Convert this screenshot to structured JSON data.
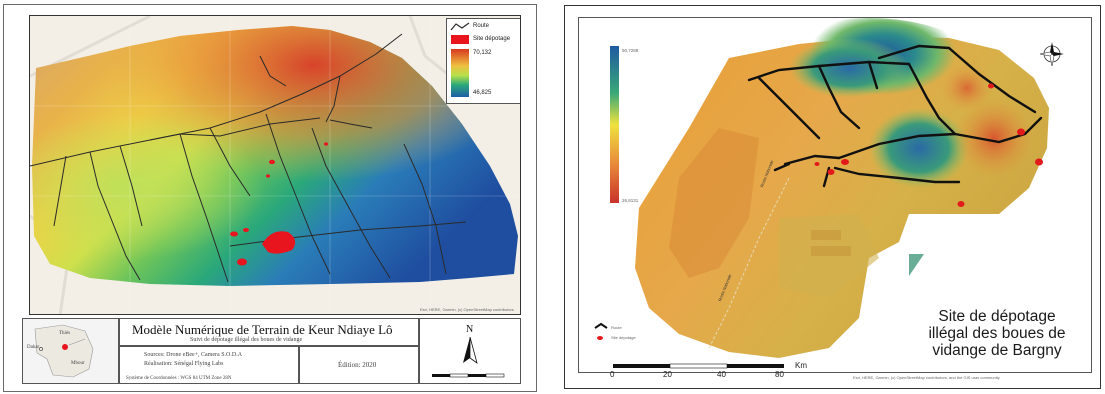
{
  "left_map": {
    "legend": {
      "route_label": "Route",
      "site_label": "Site dépotage",
      "elev_high": "70,132",
      "elev_low": "46,825"
    },
    "title": "Modèle Numérique de Terrain de Keur Ndiaye Lô",
    "subtitle": "Suivi de dépotage illégal des boues de vidange",
    "credits_line1": "Sources: Drone eBee+, Camera S.O.D.A",
    "credits_line2": "Réalisation: Sénégal Flying Labs",
    "credits_line3": "Système de Coordonnées : WGS 84 UTM Zone 28N",
    "edition": "Édition: 2020",
    "inset_labels": [
      "Thiès",
      "Dakar",
      "Mbour"
    ],
    "north_label": "N",
    "attribution": "Esri, HERE, Garmin, (c) OpenStreetMap contributors",
    "colors": {
      "road": "#2a2a2a",
      "site": "#e8141e",
      "high": "#d83820",
      "mid": "#f2e23c",
      "low": "#1e5fa8"
    }
  },
  "right_map": {
    "legend_high": "90,7288",
    "legend_low": "26,8131",
    "legend_route": "Route",
    "legend_site": "Site dépotage",
    "site_title_lines": [
      "Site de dépotage",
      "illégal des boues de",
      "vidange de Bargny"
    ],
    "scale_ticks": [
      "0",
      "20",
      "40",
      "80"
    ],
    "scale_unit": "Km",
    "road_labels": [
      "Route Nationale",
      "Route Nationale"
    ],
    "attribution": "Esri, HERE, Garmin, (c) OpenStreetMap contributors, and the GIS user community",
    "colors": {
      "road": "#111111",
      "site": "#e31a1c"
    }
  }
}
